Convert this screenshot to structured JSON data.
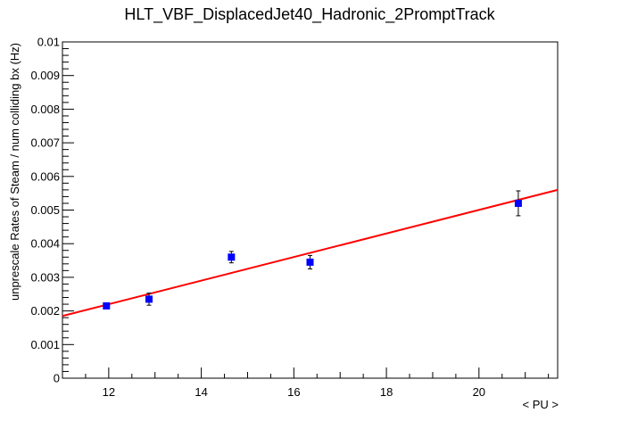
{
  "chart_data": {
    "type": "scatter",
    "title": "HLT_VBF_DisplacedJet40_Hadronic_2PromptTrack",
    "xlabel": "< PU >",
    "ylabel": "unprescale Rates of Steam / num colliding bx (Hz)",
    "xlim": [
      11.0,
      21.7
    ],
    "ylim": [
      0,
      0.01
    ],
    "x_ticks": [
      12,
      14,
      16,
      18,
      20
    ],
    "x_tick_labels": [
      "12",
      "14",
      "16",
      "18",
      "20"
    ],
    "y_ticks": [
      0,
      0.001,
      0.002,
      0.003,
      0.004,
      0.005,
      0.006,
      0.007,
      0.008,
      0.009,
      0.01
    ],
    "y_tick_labels": [
      "0",
      "0.001",
      "0.002",
      "0.003",
      "0.004",
      "0.005",
      "0.006",
      "0.007",
      "0.008",
      "0.009",
      "0.01"
    ],
    "grid": false,
    "series": [
      {
        "marker": "square",
        "color": "#0000ff",
        "points": [
          {
            "x": 11.95,
            "y": 0.00215,
            "err": 8e-05
          },
          {
            "x": 12.87,
            "y": 0.00235,
            "err": 0.00018
          },
          {
            "x": 14.65,
            "y": 0.0036,
            "err": 0.00017
          },
          {
            "x": 16.35,
            "y": 0.00345,
            "err": 0.0002
          },
          {
            "x": 20.85,
            "y": 0.0052,
            "err": 0.00037
          }
        ]
      }
    ],
    "fit": {
      "color": "#ff0000",
      "x": [
        11.0,
        21.7
      ],
      "y": [
        0.00185,
        0.0056
      ]
    }
  }
}
